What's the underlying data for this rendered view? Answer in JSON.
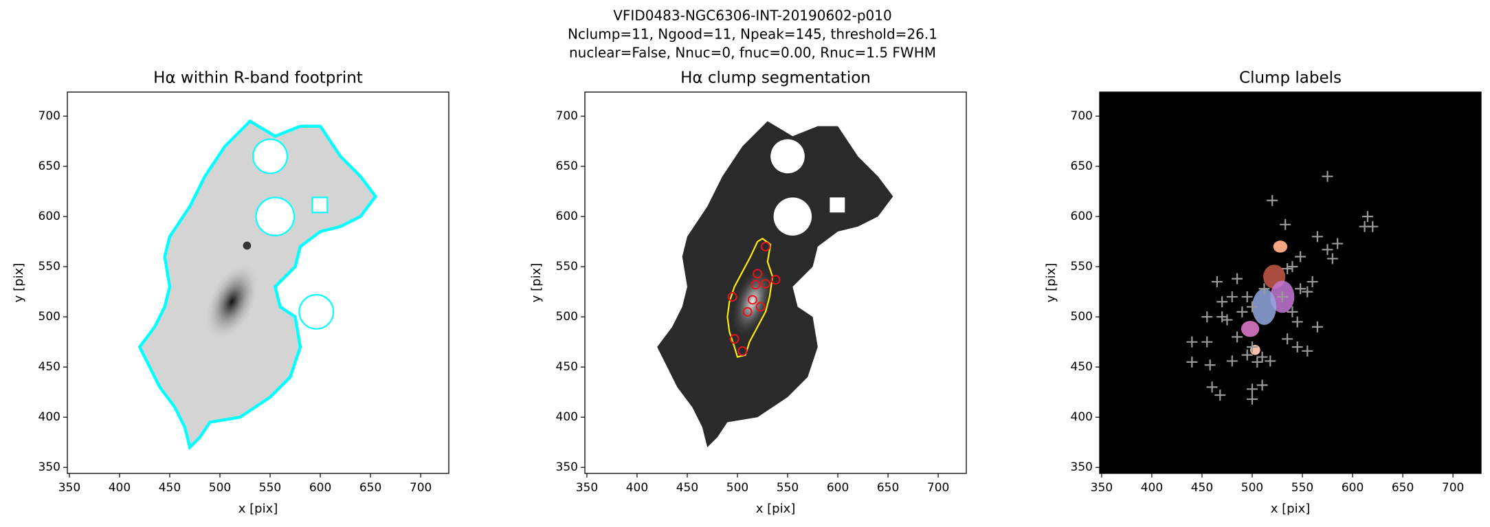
{
  "suptitle": [
    "VFID0483-NGC6306-INT-20190602-p010",
    "Nclump=11, Ngood=11, Npeak=145, threshold=26.1",
    "nuclear=False, Nnuc=0, fnuc=0.00, Rnuc=1.5 FWHM"
  ],
  "chart_data": [
    {
      "type": "image",
      "title": "Hα within R-band footprint",
      "xlabel": "x [pix]",
      "ylabel": "y [pix]",
      "facecolor": "#ffffff",
      "xlim": [
        348,
        728
      ],
      "ylim": [
        344,
        724
      ],
      "xticks": [
        350,
        400,
        450,
        500,
        550,
        600,
        650,
        700
      ],
      "yticks": [
        350,
        400,
        450,
        500,
        550,
        600,
        650,
        700
      ]
    },
    {
      "type": "scatter",
      "title": "Hα clump segmentation",
      "xlabel": "x [pix]",
      "ylabel": "y [pix]",
      "facecolor": "#ffffff",
      "marker": "circle",
      "color": "#e8141c",
      "xlim": [
        348,
        728
      ],
      "ylim": [
        344,
        724
      ],
      "xticks": [
        350,
        400,
        450,
        500,
        550,
        600,
        650,
        700
      ],
      "yticks": [
        350,
        400,
        450,
        500,
        550,
        600,
        650,
        700
      ],
      "x": [
        528,
        520,
        518,
        528,
        538,
        495,
        515,
        523,
        510,
        497,
        505
      ],
      "y": [
        570,
        543,
        532,
        533,
        537,
        520,
        517,
        510,
        505,
        478,
        466
      ]
    },
    {
      "type": "scatter",
      "title": "Clump labels",
      "xlabel": "x [pix]",
      "ylabel": "y [pix]",
      "facecolor": "#000000",
      "marker": "plus",
      "color": "#9a9a9a",
      "xlim": [
        348,
        728
      ],
      "ylim": [
        344,
        724
      ],
      "xticks": [
        350,
        400,
        450,
        500,
        550,
        600,
        650,
        700
      ],
      "yticks": [
        350,
        400,
        450,
        500,
        550,
        600,
        650,
        700
      ],
      "x": [
        575,
        520,
        615,
        612,
        620,
        533,
        565,
        585,
        575,
        580,
        548,
        540,
        535,
        465,
        485,
        512,
        548,
        555,
        560,
        495,
        480,
        470,
        500,
        490,
        455,
        470,
        475,
        540,
        545,
        565,
        440,
        455,
        485,
        500,
        510,
        495,
        535,
        545,
        555,
        440,
        458,
        480,
        505,
        518,
        460,
        468,
        500,
        510,
        500,
        530
      ],
      "y": [
        640,
        616,
        600,
        590,
        590,
        592,
        580,
        573,
        567,
        558,
        560,
        550,
        548,
        535,
        538,
        528,
        528,
        525,
        535,
        520,
        520,
        515,
        510,
        505,
        500,
        500,
        497,
        505,
        495,
        490,
        475,
        475,
        480,
        470,
        460,
        462,
        478,
        470,
        466,
        455,
        452,
        456,
        455,
        456,
        430,
        422,
        428,
        432,
        418,
        520
      ]
    }
  ]
}
